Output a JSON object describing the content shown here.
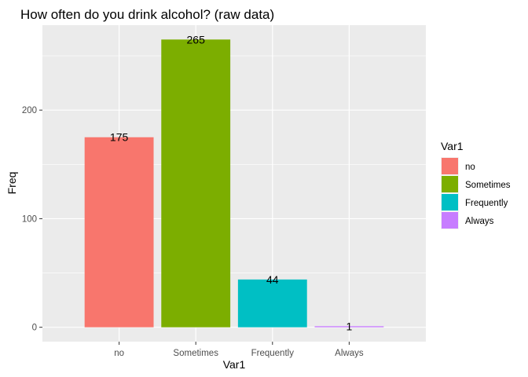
{
  "chart_data": {
    "type": "bar",
    "title": "How often do you drink alcohol? (raw data)",
    "xlabel": "Var1",
    "ylabel": "Freq",
    "categories": [
      "no",
      "Sometimes",
      "Frequently",
      "Always"
    ],
    "values": [
      175,
      265,
      44,
      1
    ],
    "data_labels": [
      "175",
      "265",
      "44",
      "1"
    ],
    "colors": [
      "#F8766D",
      "#7CAE00",
      "#00BFC4",
      "#C77CFF"
    ],
    "yticks": [
      0,
      100,
      200
    ],
    "ylim": [
      -13.25,
      278.25
    ],
    "grid": true,
    "legend": {
      "title": "Var1",
      "position": "right",
      "entries": [
        "no",
        "Sometimes",
        "Frequently",
        "Always"
      ]
    }
  }
}
